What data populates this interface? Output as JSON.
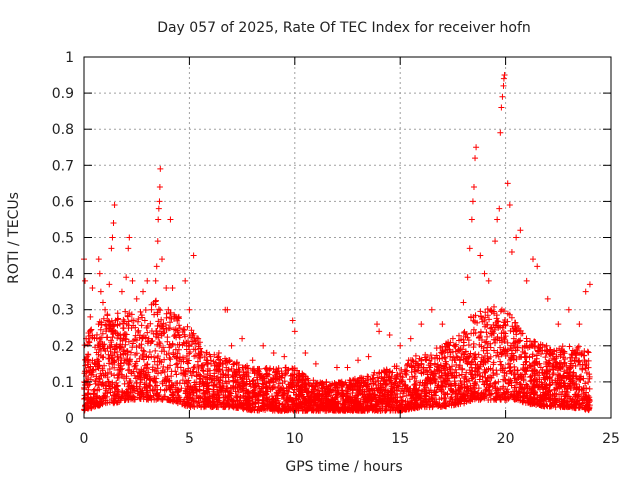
{
  "chart_data": {
    "type": "scatter",
    "title": "Day 057 of 2025, Rate Of TEC Index for receiver hofn",
    "xlabel": "GPS time / hours",
    "ylabel": "ROTI / TECUs",
    "xlim": [
      0,
      25
    ],
    "ylim": [
      0,
      1
    ],
    "xticks": [
      0,
      5,
      10,
      15,
      20,
      25
    ],
    "xtick_labels": [
      "0",
      "5",
      "10",
      "15",
      "20",
      "25"
    ],
    "yticks": [
      0,
      0.1,
      0.2,
      0.3,
      0.4,
      0.5,
      0.6,
      0.7,
      0.8,
      0.9,
      1
    ],
    "ytick_labels": [
      "0",
      "0.1",
      "0.2",
      "0.3",
      "0.4",
      "0.5",
      "0.6",
      "0.7",
      "0.8",
      "0.9",
      "1"
    ],
    "grid": true,
    "marker": "+",
    "marker_color": "#ff0000",
    "series": [
      {
        "name": "ROTI",
        "points": [
          [
            0.0,
            0.44
          ],
          [
            0.05,
            0.38
          ],
          [
            0.1,
            0.22
          ],
          [
            0.15,
            0.1
          ],
          [
            0.2,
            0.05
          ],
          [
            0.3,
            0.28
          ],
          [
            0.4,
            0.36
          ],
          [
            0.5,
            0.15
          ],
          [
            0.7,
            0.44
          ],
          [
            0.75,
            0.4
          ],
          [
            0.8,
            0.35
          ],
          [
            0.9,
            0.32
          ],
          [
            1.0,
            0.3
          ],
          [
            1.1,
            0.27
          ],
          [
            1.2,
            0.37
          ],
          [
            1.3,
            0.47
          ],
          [
            1.35,
            0.5
          ],
          [
            1.4,
            0.54
          ],
          [
            1.45,
            0.59
          ],
          [
            1.6,
            0.29
          ],
          [
            1.7,
            0.26
          ],
          [
            1.8,
            0.35
          ],
          [
            2.0,
            0.39
          ],
          [
            2.1,
            0.47
          ],
          [
            2.15,
            0.5
          ],
          [
            2.3,
            0.38
          ],
          [
            2.5,
            0.33
          ],
          [
            2.8,
            0.35
          ],
          [
            3.0,
            0.38
          ],
          [
            3.2,
            0.3
          ],
          [
            3.4,
            0.38
          ],
          [
            3.45,
            0.42
          ],
          [
            3.5,
            0.49
          ],
          [
            3.52,
            0.55
          ],
          [
            3.55,
            0.58
          ],
          [
            3.58,
            0.6
          ],
          [
            3.6,
            0.64
          ],
          [
            3.62,
            0.69
          ],
          [
            3.7,
            0.44
          ],
          [
            3.9,
            0.36
          ],
          [
            4.0,
            0.3
          ],
          [
            4.1,
            0.55
          ],
          [
            4.2,
            0.36
          ],
          [
            4.5,
            0.28
          ],
          [
            4.8,
            0.38
          ],
          [
            5.0,
            0.3
          ],
          [
            5.2,
            0.45
          ],
          [
            5.5,
            0.21
          ],
          [
            5.8,
            0.18
          ],
          [
            6.0,
            0.17
          ],
          [
            6.4,
            0.18
          ],
          [
            6.7,
            0.3
          ],
          [
            6.8,
            0.3
          ],
          [
            7.0,
            0.2
          ],
          [
            7.5,
            0.22
          ],
          [
            8.0,
            0.16
          ],
          [
            8.5,
            0.2
          ],
          [
            9.0,
            0.18
          ],
          [
            9.5,
            0.17
          ],
          [
            9.9,
            0.27
          ],
          [
            10.0,
            0.24
          ],
          [
            10.5,
            0.18
          ],
          [
            11.0,
            0.15
          ],
          [
            11.5,
            0.1
          ],
          [
            12.0,
            0.14
          ],
          [
            12.5,
            0.14
          ],
          [
            13.0,
            0.16
          ],
          [
            13.5,
            0.17
          ],
          [
            13.9,
            0.26
          ],
          [
            14.0,
            0.24
          ],
          [
            14.5,
            0.23
          ],
          [
            15.0,
            0.2
          ],
          [
            15.5,
            0.22
          ],
          [
            16.0,
            0.26
          ],
          [
            16.5,
            0.3
          ],
          [
            17.0,
            0.26
          ],
          [
            17.5,
            0.22
          ],
          [
            18.0,
            0.32
          ],
          [
            18.2,
            0.39
          ],
          [
            18.3,
            0.47
          ],
          [
            18.4,
            0.55
          ],
          [
            18.45,
            0.6
          ],
          [
            18.5,
            0.64
          ],
          [
            18.55,
            0.72
          ],
          [
            18.6,
            0.75
          ],
          [
            18.8,
            0.45
          ],
          [
            19.0,
            0.4
          ],
          [
            19.2,
            0.38
          ],
          [
            19.5,
            0.49
          ],
          [
            19.6,
            0.55
          ],
          [
            19.7,
            0.58
          ],
          [
            19.75,
            0.79
          ],
          [
            19.8,
            0.86
          ],
          [
            19.85,
            0.89
          ],
          [
            19.9,
            0.92
          ],
          [
            19.92,
            0.94
          ],
          [
            19.95,
            0.95
          ],
          [
            20.1,
            0.65
          ],
          [
            20.2,
            0.59
          ],
          [
            20.3,
            0.46
          ],
          [
            20.5,
            0.5
          ],
          [
            20.7,
            0.52
          ],
          [
            21.0,
            0.38
          ],
          [
            21.3,
            0.44
          ],
          [
            21.5,
            0.42
          ],
          [
            22.0,
            0.33
          ],
          [
            22.5,
            0.26
          ],
          [
            23.0,
            0.3
          ],
          [
            23.5,
            0.26
          ],
          [
            23.8,
            0.35
          ],
          [
            24.0,
            0.37
          ]
        ],
        "density_profile": {
          "x": [
            0,
            0.5,
            1,
            1.5,
            2,
            2.5,
            3,
            3.5,
            4,
            4.5,
            5,
            6,
            7,
            8,
            9,
            10,
            11,
            12,
            13,
            14,
            15,
            16,
            17,
            18,
            18.5,
            19,
            19.5,
            20,
            20.5,
            21,
            22,
            23,
            24
          ],
          "upper": [
            0.22,
            0.27,
            0.3,
            0.28,
            0.3,
            0.28,
            0.32,
            0.33,
            0.3,
            0.28,
            0.25,
            0.18,
            0.16,
            0.14,
            0.14,
            0.14,
            0.1,
            0.1,
            0.11,
            0.13,
            0.15,
            0.18,
            0.2,
            0.24,
            0.3,
            0.3,
            0.32,
            0.3,
            0.27,
            0.22,
            0.2,
            0.2,
            0.2
          ],
          "lower": [
            0.02,
            0.03,
            0.04,
            0.04,
            0.05,
            0.05,
            0.05,
            0.05,
            0.05,
            0.04,
            0.03,
            0.03,
            0.03,
            0.02,
            0.02,
            0.02,
            0.02,
            0.02,
            0.02,
            0.02,
            0.02,
            0.03,
            0.03,
            0.04,
            0.05,
            0.05,
            0.05,
            0.05,
            0.05,
            0.04,
            0.03,
            0.03,
            0.02
          ],
          "samples_per_hour": 180
        }
      }
    ]
  }
}
